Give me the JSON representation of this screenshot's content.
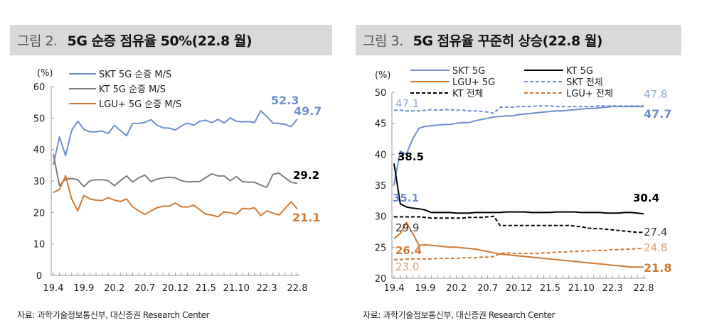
{
  "figures": [
    {
      "number": "그림 2.",
      "title": "5G 순증 점유율 50%(22.8 월)",
      "source": "자료: 과학기술정보통신부, 대신증권 Research Center"
    },
    {
      "number": "그림 3.",
      "title": "5G 점유율 꾸준히 상승(22.8 월)",
      "source": "자료: 과학기술정보통신부, 대신증권 Research Center"
    }
  ],
  "chart_data": [
    {
      "type": "line",
      "unit_label": "(%)",
      "ylim": [
        0,
        60
      ],
      "yticks": [
        "0",
        "10",
        "20",
        "30",
        "40",
        "50",
        "60"
      ],
      "xticks": [
        "19.4",
        "19.9",
        "20.2",
        "20.7",
        "20.12",
        "21.5",
        "21.10",
        "22.3",
        "22.8"
      ],
      "legend": "top-left",
      "series": [
        {
          "name": "SKT 5G 순증 M/S",
          "color": "#6f8fd0",
          "dash": false,
          "values": [
            35.1,
            44,
            38.1,
            46,
            49,
            46.4,
            45.6,
            45.6,
            45.9,
            45.1,
            47.7,
            46,
            44.4,
            48.3,
            48.3,
            48.6,
            49.5,
            47.7,
            46.9,
            46.8,
            46.2,
            47.5,
            48.4,
            47.7,
            49,
            49.3,
            48.5,
            49.6,
            48.4,
            50,
            49,
            48.8,
            48.9,
            48.6,
            52.3,
            50.5,
            48.4,
            48.3,
            48,
            47.3,
            49.7
          ]
        },
        {
          "name": "KT 5G 순증 M/S",
          "color": "#7f7f7f",
          "dash": false,
          "values": [
            38.6,
            28.5,
            30.6,
            30.8,
            30.4,
            28.2,
            30.1,
            30.4,
            30.4,
            30.1,
            28.5,
            30.1,
            31.6,
            29.7,
            31,
            31.9,
            29.8,
            30.6,
            31,
            31.2,
            31,
            30.1,
            29.7,
            29.8,
            29.8,
            31.1,
            32.3,
            31.6,
            31.6,
            30.1,
            31.4,
            29.8,
            29.6,
            29.6,
            28.7,
            28,
            32.1,
            32.5,
            31,
            29.6,
            29.2
          ]
        },
        {
          "name": "LGU+ 5G 순증 M/S",
          "color": "#d07a35",
          "dash": false,
          "values": [
            26.3,
            27.3,
            31.7,
            24.3,
            20.5,
            25.4,
            24.3,
            23.9,
            23.8,
            24.7,
            23.9,
            23.5,
            24.3,
            21.8,
            20.5,
            19.4,
            20.5,
            21.5,
            22,
            22,
            23,
            21.8,
            21.7,
            22.3,
            20.9,
            19.4,
            19.2,
            18.6,
            20.2,
            19.9,
            19.5,
            21.3,
            21.1,
            21.5,
            19,
            20.5,
            19.8,
            19.2,
            21.3,
            23.4,
            21.1
          ]
        }
      ],
      "annotations": [
        {
          "text": "52.3",
          "color": "#6f8fd0"
        },
        {
          "text": "49.7",
          "color": "#6f8fd0"
        },
        {
          "text": "29.2",
          "color": "#000000"
        },
        {
          "text": "21.1",
          "color": "#d07a35"
        }
      ]
    },
    {
      "type": "line",
      "unit_label": "(%)",
      "ylim": [
        20,
        50
      ],
      "yticks": [
        "20",
        "25",
        "30",
        "35",
        "40",
        "45",
        "50"
      ],
      "xticks": [
        "19.4",
        "19.9",
        "20.2",
        "20.7",
        "20.12",
        "21.5",
        "21.10",
        "22.3",
        "22.8"
      ],
      "legend": "top",
      "series": [
        {
          "name": "SKT 5G",
          "color": "#6f8fd0",
          "dash": false,
          "values": [
            35.1,
            40.5,
            40,
            42.5,
            44.2,
            44.5,
            44.6,
            44.7,
            44.8,
            44.8,
            45,
            45.1,
            45.1,
            45.4,
            45.6,
            45.8,
            46,
            46.1,
            46.2,
            46.2,
            46.4,
            46.5,
            46.6,
            46.7,
            46.8,
            46.9,
            47,
            47,
            47.1,
            47.2,
            47.3,
            47.4,
            47.4,
            47.5,
            47.6,
            47.7,
            47.7,
            47.7,
            47.7,
            47.7,
            47.7
          ]
        },
        {
          "name": "KT 5G",
          "color": "#000000",
          "dash": false,
          "values": [
            38.5,
            32,
            31.5,
            31.3,
            31.2,
            31,
            30.6,
            30.6,
            30.6,
            30.6,
            30.5,
            30.5,
            30.5,
            30.6,
            30.6,
            30.6,
            30.6,
            30.6,
            30.7,
            30.7,
            30.7,
            30.7,
            30.6,
            30.6,
            30.6,
            30.6,
            30.7,
            30.7,
            30.7,
            30.7,
            30.6,
            30.6,
            30.6,
            30.6,
            30.5,
            30.5,
            30.5,
            30.6,
            30.6,
            30.5,
            30.4
          ]
        },
        {
          "name": "LGU+ 5G",
          "color": "#d07a35",
          "dash": false,
          "values": [
            26.4,
            27.2,
            29,
            27.2,
            25.3,
            25.4,
            25.3,
            25.2,
            25.1,
            25,
            25,
            24.9,
            24.8,
            24.7,
            24.5,
            24.3,
            24.1,
            23.9,
            23.8,
            23.7,
            23.6,
            23.5,
            23.4,
            23.3,
            23.2,
            23.1,
            23,
            22.9,
            22.8,
            22.7,
            22.6,
            22.5,
            22.4,
            22.3,
            22.2,
            22.1,
            22,
            21.9,
            21.8,
            21.8,
            21.8
          ]
        },
        {
          "name": "SKT 전체",
          "color": "#6f8fd0",
          "dash": true,
          "values": [
            47.1,
            47.1,
            47,
            47,
            47,
            47.1,
            47.2,
            47.1,
            47.2,
            47.2,
            47.1,
            47.1,
            47,
            47,
            46.9,
            46.8,
            46.6,
            47.6,
            47.6,
            47.6,
            47.7,
            47.7,
            47.7,
            47.8,
            47.8,
            47.8,
            47.7,
            47.7,
            47.7,
            47.7,
            47.7,
            47.7,
            47.7,
            47.8,
            47.8,
            47.8,
            47.8,
            47.8,
            47.8,
            47.8,
            47.8
          ]
        },
        {
          "name": "KT 전체",
          "color": "#000000",
          "dash": true,
          "values": [
            29.9,
            29.9,
            29.9,
            29.9,
            29.9,
            29.8,
            29.7,
            29.7,
            29.7,
            29.7,
            29.7,
            29.7,
            29.8,
            29.8,
            29.8,
            29.9,
            30,
            28.5,
            28.5,
            28.5,
            28.5,
            28.5,
            28.5,
            28.5,
            28.5,
            28.5,
            28.5,
            28.5,
            28.5,
            28.4,
            28.3,
            28.1,
            28,
            28,
            27.9,
            27.8,
            27.7,
            27.6,
            27.5,
            27.4,
            27.4
          ]
        },
        {
          "name": "LGU+ 전체",
          "color": "#d07a35",
          "dash": true,
          "values": [
            23,
            23,
            23.1,
            23.1,
            23.1,
            23.1,
            23.1,
            23.2,
            23.2,
            23.2,
            23.2,
            23.3,
            23.3,
            23.3,
            23.4,
            23.4,
            23.5,
            24,
            24.1,
            24,
            24,
            24,
            24,
            24,
            24.1,
            24.1,
            24.2,
            24.2,
            24.3,
            24.3,
            24.4,
            24.4,
            24.5,
            24.5,
            24.5,
            24.6,
            24.6,
            24.7,
            24.7,
            24.8,
            24.8
          ]
        }
      ],
      "annotations": [
        {
          "text": "47.1",
          "color": "#8faade"
        },
        {
          "text": "47.8",
          "color": "#8faade"
        },
        {
          "text": "47.7",
          "color": "#6f8fd0"
        },
        {
          "text": "38.5",
          "color": "#000000"
        },
        {
          "text": "35.1",
          "color": "#6f8fd0"
        },
        {
          "text": "30.4",
          "color": "#000000"
        },
        {
          "text": "29.9",
          "color": "#333333"
        },
        {
          "text": "27.4",
          "color": "#333333"
        },
        {
          "text": "26.4",
          "color": "#d07a35"
        },
        {
          "text": "24.8",
          "color": "#e0a070"
        },
        {
          "text": "23.0",
          "color": "#e0a070"
        },
        {
          "text": "21.8",
          "color": "#d07a35"
        }
      ]
    }
  ]
}
